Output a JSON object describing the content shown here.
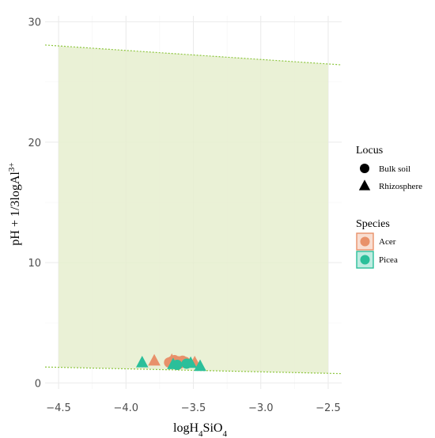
{
  "chart_data": {
    "type": "scatter",
    "xlabel": "logH4SiO4",
    "ylabel": "pH + 1/3logAl3+",
    "xlim": [
      -4.6,
      -2.4
    ],
    "ylim": [
      -0.5,
      30.5
    ],
    "x_ticks": [
      "−4.5",
      "−4.0",
      "−3.5",
      "−3.0",
      "−2.5"
    ],
    "x_tick_values": [
      -4.5,
      -4.0,
      -3.5,
      -3.0,
      -2.5
    ],
    "y_ticks": [
      "0",
      "10",
      "20",
      "30"
    ],
    "y_tick_values": [
      0,
      10,
      20,
      30
    ],
    "grid": true,
    "region": {
      "x": [
        -4.5,
        -2.5
      ],
      "upper_y": [
        28.0,
        26.5
      ],
      "lower_y": [
        1.3,
        0.8
      ],
      "fill": "#e6efcf",
      "line_color": "#8dc63f"
    },
    "legend": {
      "position": "right",
      "locus_title": "Locus",
      "locus_items": [
        {
          "label": "Bulk soil",
          "shape": "circle"
        },
        {
          "label": "Rhizosphere",
          "shape": "triangle"
        }
      ],
      "species_title": "Species",
      "species_items": [
        {
          "label": "Acer",
          "color": "#e8916a"
        },
        {
          "label": "Picea",
          "color": "#2bbf9a"
        }
      ]
    },
    "series": [
      {
        "species": "Acer",
        "locus": "Bulk soil",
        "color": "#e8916a",
        "points": [
          [
            -3.68,
            1.7
          ],
          [
            -3.66,
            1.8
          ],
          [
            -3.64,
            1.9
          ],
          [
            -3.63,
            1.7
          ],
          [
            -3.61,
            1.8
          ],
          [
            -3.6,
            1.6
          ],
          [
            -3.58,
            1.85
          ],
          [
            -3.56,
            1.75
          ]
        ]
      },
      {
        "species": "Acer",
        "locus": "Rhizosphere",
        "color": "#e8916a",
        "points": [
          [
            -3.79,
            1.85
          ],
          [
            -3.66,
            1.9
          ],
          [
            -3.49,
            1.7
          ]
        ]
      },
      {
        "species": "Picea",
        "locus": "Bulk soil",
        "color": "#2bbf9a",
        "points": [
          [
            -3.62,
            1.5
          ],
          [
            -3.55,
            1.6
          ]
        ]
      },
      {
        "species": "Picea",
        "locus": "Rhizosphere",
        "color": "#2bbf9a",
        "points": [
          [
            -3.88,
            1.7
          ],
          [
            -3.65,
            1.55
          ],
          [
            -3.52,
            1.65
          ],
          [
            -3.45,
            1.4
          ]
        ]
      }
    ]
  }
}
